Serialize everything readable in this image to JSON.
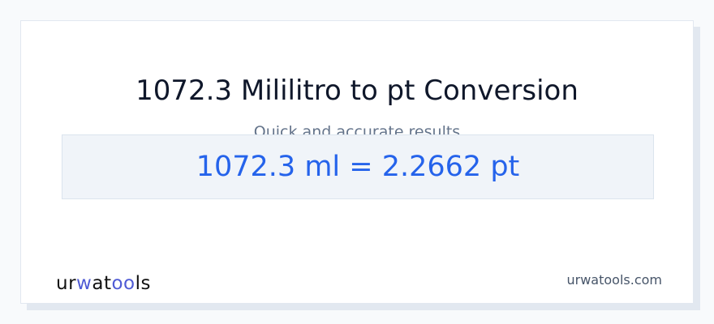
{
  "header": {
    "title": "1072.3 Mililitro to pt Conversion",
    "subtitle": "Quick and accurate results"
  },
  "result": {
    "text": "1072.3 ml = 2.2662 pt"
  },
  "footer": {
    "logo": "urwatools",
    "logo_parts": [
      "ur",
      "w",
      "at",
      "oo",
      "ls"
    ],
    "site": "urwatools.com"
  },
  "colors": {
    "accent": "#2563eb",
    "logo_accent": "#4f5bd5"
  }
}
